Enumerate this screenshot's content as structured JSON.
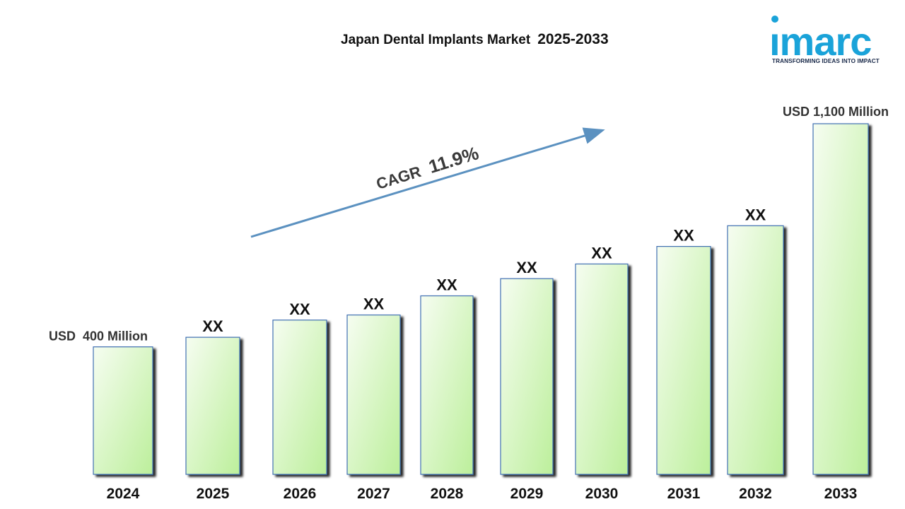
{
  "title": {
    "main": "Japan Dental Implants Market",
    "years": "2025-2033"
  },
  "logo": {
    "text": "imarc",
    "tagline": "TRANSFORMING IDEAS INTO IMPACT",
    "color": "#1aa3d9"
  },
  "cagr": {
    "label": "CAGR",
    "value": "11.9%"
  },
  "colors": {
    "bar_fill_top": "#f4fcef",
    "bar_fill_bottom": "#bff0a0",
    "bar_border": "#3f6fb2",
    "arrow": "#5b91c0"
  },
  "chart_data": {
    "type": "bar",
    "title": "Japan Dental Implants Market 2025-2033",
    "categories": [
      "2024",
      "2025",
      "2026",
      "2027",
      "2028",
      "2029",
      "2030",
      "2031",
      "2032",
      "2033"
    ],
    "values": [
      400,
      430,
      484,
      500,
      560,
      614,
      660,
      715,
      780,
      1100
    ],
    "data_labels": [
      "USD  400 Million",
      "XX",
      "XX",
      "XX",
      "XX",
      "XX",
      "XX",
      "XX",
      "XX",
      "USD 1,100 Million"
    ],
    "ylim": [
      0,
      1100
    ],
    "unit": "USD Million",
    "grid": false,
    "legend": "none"
  }
}
